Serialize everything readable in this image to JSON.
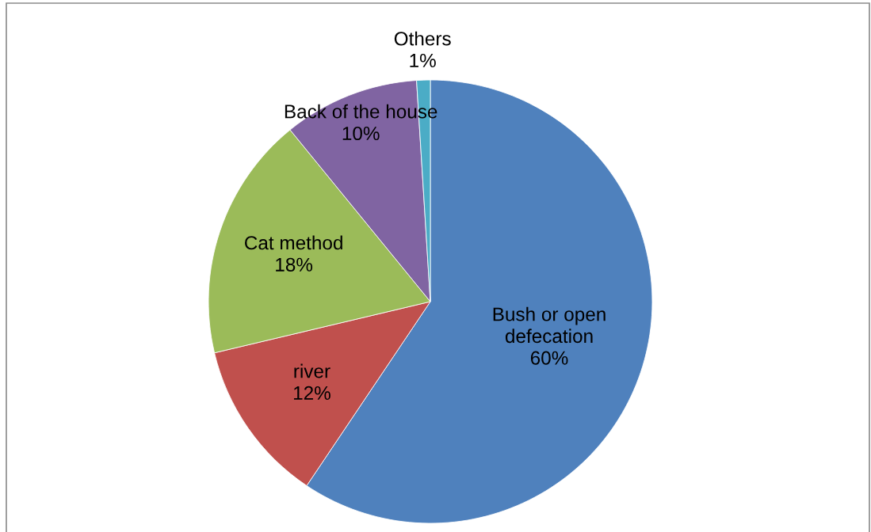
{
  "chart_data": {
    "type": "pie",
    "categories": [
      "Bush or open\ndefecation",
      "river",
      "Cat method",
      "Back of the house",
      "Others"
    ],
    "values": [
      60,
      12,
      18,
      10,
      1
    ],
    "value_labels": [
      "60%",
      "12%",
      "18%",
      "10%",
      "1%"
    ],
    "colors": [
      "#4f81bd",
      "#c0504d",
      "#9bbb59",
      "#8064a2",
      "#4bacc6"
    ],
    "legend": false
  }
}
